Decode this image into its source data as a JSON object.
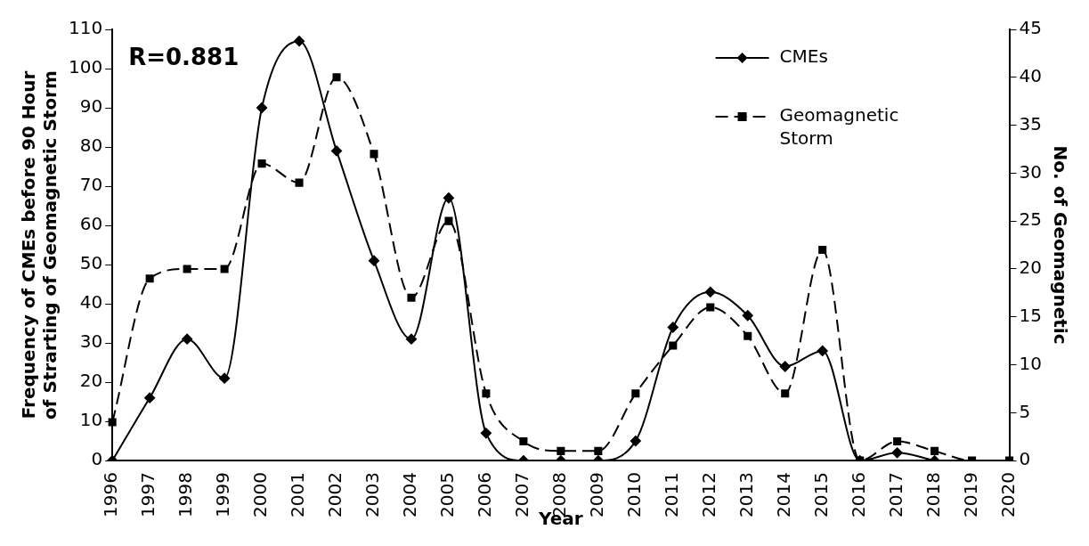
{
  "chart_data": {
    "type": "line",
    "xlabel": "Year",
    "ylabel": "Frequency of CMEs before 90 Hour\nof Strarting of Geomagnetic Storm",
    "y2label": "No. of Geomagnetic",
    "categories": [
      "1996",
      "1997",
      "1998",
      "1999",
      "2000",
      "2001",
      "2002",
      "2003",
      "2004",
      "2005",
      "2006",
      "2007",
      "2008",
      "2009",
      "2010",
      "2011",
      "2012",
      "2013",
      "2014",
      "2015",
      "2016",
      "2017",
      "2018",
      "2019",
      "2020"
    ],
    "series": [
      {
        "name": "CMEs",
        "color": "#000000",
        "marker": "diamond",
        "line_style": "solid",
        "values": [
          0,
          16,
          31,
          21,
          90,
          107,
          79,
          51,
          31,
          67,
          7,
          0,
          0,
          0,
          5,
          34,
          43,
          37,
          24,
          28,
          0,
          2,
          0,
          null,
          null
        ]
      },
      {
        "name": "Geomagnetic Storm",
        "color": "#000000",
        "marker": "square",
        "line_style": "dashed",
        "axis": "y2",
        "values": [
          4,
          19,
          20,
          20,
          31,
          29,
          40,
          32,
          17,
          25,
          7,
          2,
          1,
          1,
          7,
          12,
          16,
          13,
          7,
          22,
          0,
          2,
          1,
          0,
          0
        ]
      }
    ],
    "ylim": [
      0,
      110
    ],
    "yticks": [
      0,
      10,
      20,
      30,
      40,
      50,
      60,
      70,
      80,
      90,
      100,
      110
    ],
    "y2lim": [
      0,
      45
    ],
    "y2ticks": [
      0,
      5,
      10,
      15,
      20,
      25,
      30,
      35,
      40,
      45
    ],
    "grid": false,
    "legend": "top right",
    "annotations": [
      "R=0.881"
    ]
  }
}
